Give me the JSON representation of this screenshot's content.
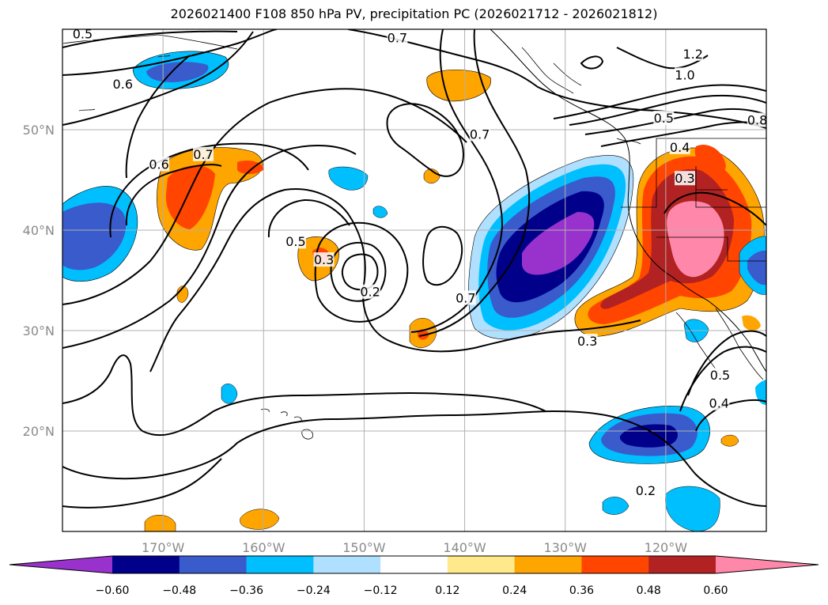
{
  "title": "2026021400 F108 850 hPa PV, precipitation PC (2026021712 - 2026021812)",
  "map": {
    "lon_range": [
      -180,
      -110
    ],
    "lat_range": [
      10,
      60
    ],
    "lon_ticks": [
      {
        "lon": -170,
        "label": "170°W"
      },
      {
        "lon": -160,
        "label": "160°W"
      },
      {
        "lon": -150,
        "label": "150°W"
      },
      {
        "lon": -140,
        "label": "140°W"
      },
      {
        "lon": -130,
        "label": "130°W"
      },
      {
        "lon": -120,
        "label": "120°W"
      }
    ],
    "lat_ticks": [
      {
        "lat": 20,
        "label": "20°N"
      },
      {
        "lat": 30,
        "label": "30°N"
      },
      {
        "lat": 40,
        "label": "40°N"
      },
      {
        "lat": 50,
        "label": "50°N"
      }
    ],
    "gridlines": true
  },
  "colorbar": {
    "levels": [
      "−0.60",
      "−0.48",
      "−0.36",
      "−0.24",
      "−0.12",
      "0.12",
      "0.24",
      "0.36",
      "0.48",
      "0.60"
    ],
    "colors": [
      "#9932cc",
      "#00008b",
      "#3a5bcc",
      "#00bfff",
      "#b0e0ff",
      "#ffffff",
      "#ffe98a",
      "#ffa500",
      "#ff4500",
      "#b22222",
      "#ff88aa"
    ],
    "extend": "both"
  },
  "pv_contour_labels": [
    {
      "text": "0.5",
      "lon": -178,
      "lat": 59.5
    },
    {
      "text": "0.7",
      "lon": -146.7,
      "lat": 59.1
    },
    {
      "text": "0.6",
      "lon": -174,
      "lat": 54.5
    },
    {
      "text": "0.6",
      "lon": -170.4,
      "lat": 46.5
    },
    {
      "text": "0.7",
      "lon": -166,
      "lat": 47.5
    },
    {
      "text": "0.7",
      "lon": -138.5,
      "lat": 49.5
    },
    {
      "text": "0.5",
      "lon": -156.8,
      "lat": 38.8
    },
    {
      "text": "0.3",
      "lon": -154,
      "lat": 37
    },
    {
      "text": "0.2",
      "lon": -149.4,
      "lat": 33.8
    },
    {
      "text": "0.7",
      "lon": -139.9,
      "lat": 33.2
    },
    {
      "text": "0.3",
      "lon": -127.8,
      "lat": 28.9
    },
    {
      "text": "1.0",
      "lon": -118.1,
      "lat": 55.4
    },
    {
      "text": "1.2",
      "lon": -117.3,
      "lat": 57.5
    },
    {
      "text": "0.5",
      "lon": -120.2,
      "lat": 51.1
    },
    {
      "text": "0.8",
      "lon": -110.9,
      "lat": 50.9
    },
    {
      "text": "0.4",
      "lon": -118.6,
      "lat": 48.2
    },
    {
      "text": "0.3",
      "lon": -118.1,
      "lat": 45.1
    },
    {
      "text": "0.5",
      "lon": -114.6,
      "lat": 25.5
    },
    {
      "text": "0.4",
      "lon": -114.7,
      "lat": 22.7
    },
    {
      "text": "0.2",
      "lon": -122,
      "lat": 14
    }
  ]
}
